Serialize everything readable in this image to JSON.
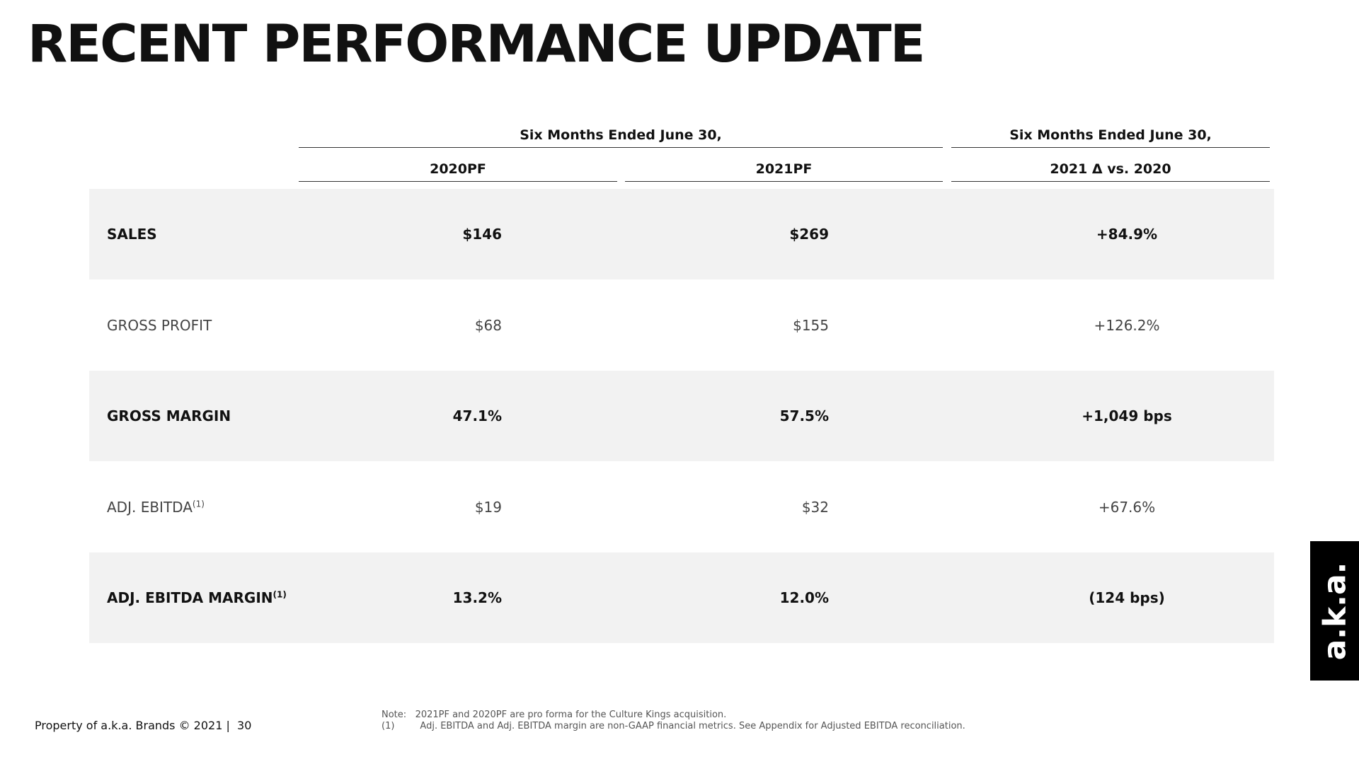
{
  "header": {
    "title": "RECENT PERFORMANCE UPDATE"
  },
  "table": {
    "groups": [
      "Six Months Ended June 30,",
      "Six Months Ended June 30,"
    ],
    "columns": [
      "2020PF",
      "2021PF",
      "2021 Δ vs. 2020"
    ],
    "rows": [
      {
        "label": "SALES",
        "values": [
          "$146",
          "$269",
          "+84.9%"
        ]
      },
      {
        "label": "GROSS PROFIT",
        "values": [
          "$68",
          "$155",
          "+126.2%"
        ]
      },
      {
        "label": "GROSS MARGIN",
        "values": [
          "47.1%",
          "57.5%",
          "+1,049 bps"
        ]
      },
      {
        "label": "ADJ. EBITDA",
        "footnote": "(1)",
        "values": [
          "$19",
          "$32",
          "+67.6%"
        ]
      },
      {
        "label": "ADJ. EBITDA MARGIN",
        "footnote": "(1)",
        "values": [
          "13.2%",
          "12.0%",
          "(124 bps)"
        ]
      }
    ]
  },
  "footer": {
    "text": "Property of a.k.a. Brands © 2021 |",
    "page": "30"
  },
  "notes": [
    {
      "marker": "Note:",
      "text": "2021PF and 2020PF are pro forma for the Culture Kings acquisition."
    },
    {
      "marker": "(1)",
      "text": "Adj. EBITDA and Adj. EBITDA margin are non-GAAP financial metrics. See Appendix for Adjusted EBITDA reconciliation."
    }
  ],
  "logo": "a.k.a."
}
